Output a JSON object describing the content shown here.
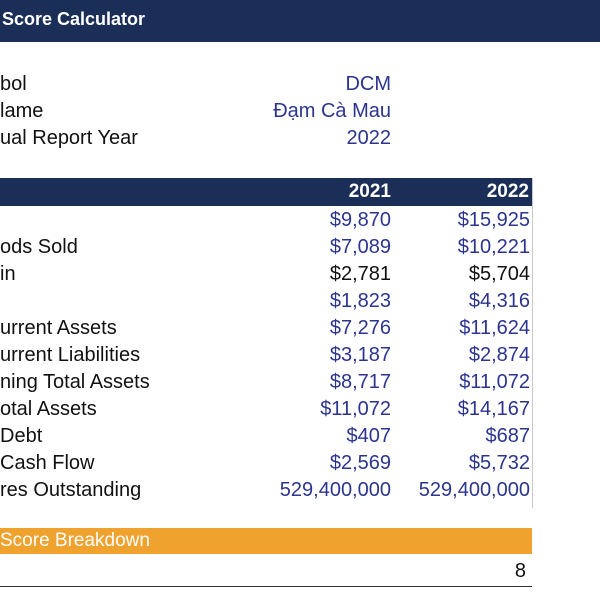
{
  "title": "Score Calculator",
  "info": [
    {
      "label": "bol",
      "value": "DCM"
    },
    {
      "label": "lame",
      "value": "Đạm Cà Mau"
    },
    {
      "label": "ual Report Year",
      "value": "2022"
    }
  ],
  "header": {
    "year1": "2021",
    "year2": "2022"
  },
  "rows": [
    {
      "label": "",
      "v2021": "$9,870",
      "v2022": "$15,925"
    },
    {
      "label": "ods Sold",
      "v2021": "$7,089",
      "v2022": "$10,221"
    },
    {
      "label": "in",
      "v2021": "$2,781",
      "v2022": "$5,704"
    },
    {
      "label": "",
      "v2021": "$1,823",
      "v2022": "$4,316"
    },
    {
      "label": "urrent Assets",
      "v2021": "$7,276",
      "v2022": "$11,624"
    },
    {
      "label": "urrent Liabilities",
      "v2021": "$3,187",
      "v2022": "$2,874"
    },
    {
      "label": "ning Total Assets",
      "v2021": "$8,717",
      "v2022": "$11,072"
    },
    {
      "label": "otal Assets",
      "v2021": "$11,072",
      "v2022": "$14,167"
    },
    {
      "label": "Debt",
      "v2021": "$407",
      "v2022": "$687"
    },
    {
      "label": "Cash Flow",
      "v2021": "$2,569",
      "v2022": "$5,732"
    },
    {
      "label": "res Outstanding",
      "v2021": "529,400,000",
      "v2022": "529,400,000"
    }
  ],
  "breakdown": {
    "title": "Score Breakdown",
    "score": "8"
  },
  "colors": {
    "navy": "#1b2e57",
    "orange": "#f0a22f",
    "value_blue": "#2b3590"
  }
}
